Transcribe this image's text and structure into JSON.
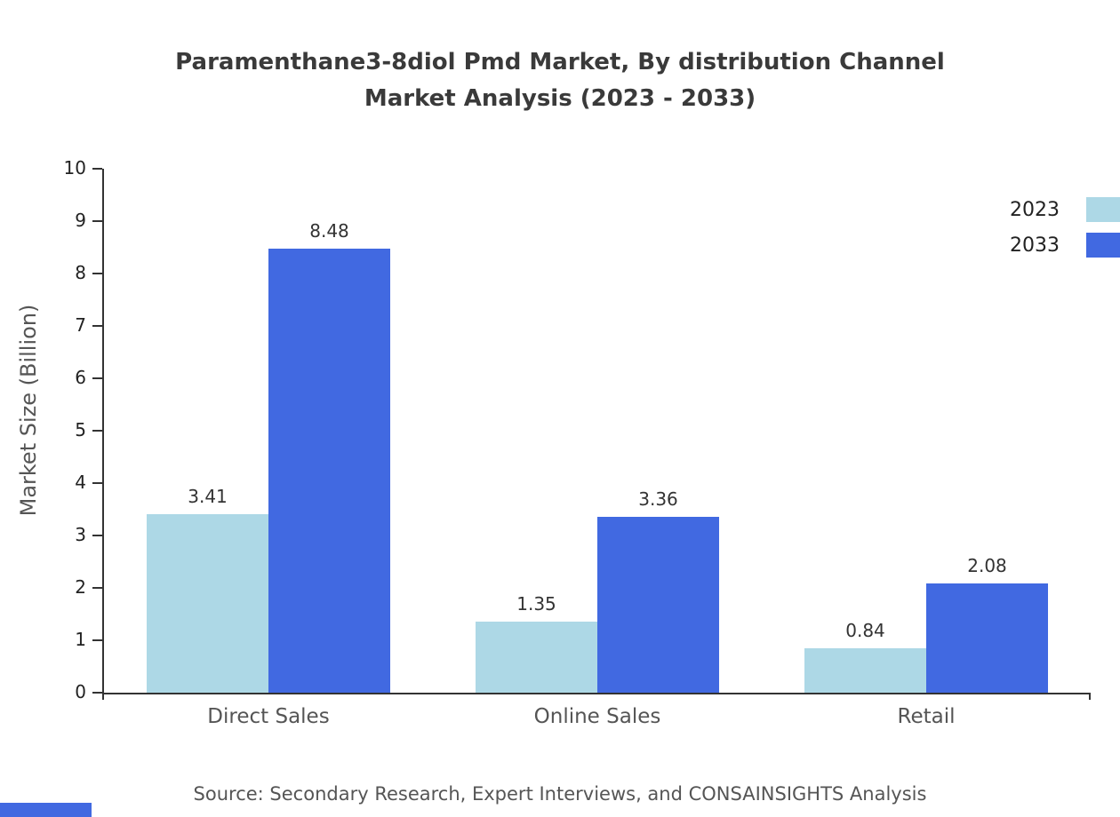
{
  "chart_data": {
    "type": "bar",
    "title": "Paramenthane3-8diol Pmd Market, By distribution Channel\nMarket Analysis (2023 - 2033)",
    "categories": [
      "Direct Sales",
      "Online Sales",
      "Retail"
    ],
    "series": [
      {
        "name": "2023",
        "color": "#ADD8E6",
        "values": [
          3.41,
          1.35,
          0.84
        ]
      },
      {
        "name": "2033",
        "color": "#4169E1",
        "values": [
          8.48,
          3.36,
          2.08
        ]
      }
    ],
    "xlabel": "",
    "ylabel": "Market Size (Billion)",
    "ylim": [
      0,
      10
    ],
    "yticks": [
      0,
      1,
      2,
      3,
      4,
      5,
      6,
      7,
      8,
      9,
      10
    ],
    "value_label_format": "2-decimals",
    "grid": false,
    "legend_position": "top-right"
  },
  "footer": {
    "source": "Source: Secondary Research, Expert Interviews, and CONSAINSIGHTS Analysis"
  },
  "colors": {
    "accent": "#4169E1",
    "axis": "#333333",
    "title_text": "#3a3a3a",
    "label_text": "#555555"
  }
}
